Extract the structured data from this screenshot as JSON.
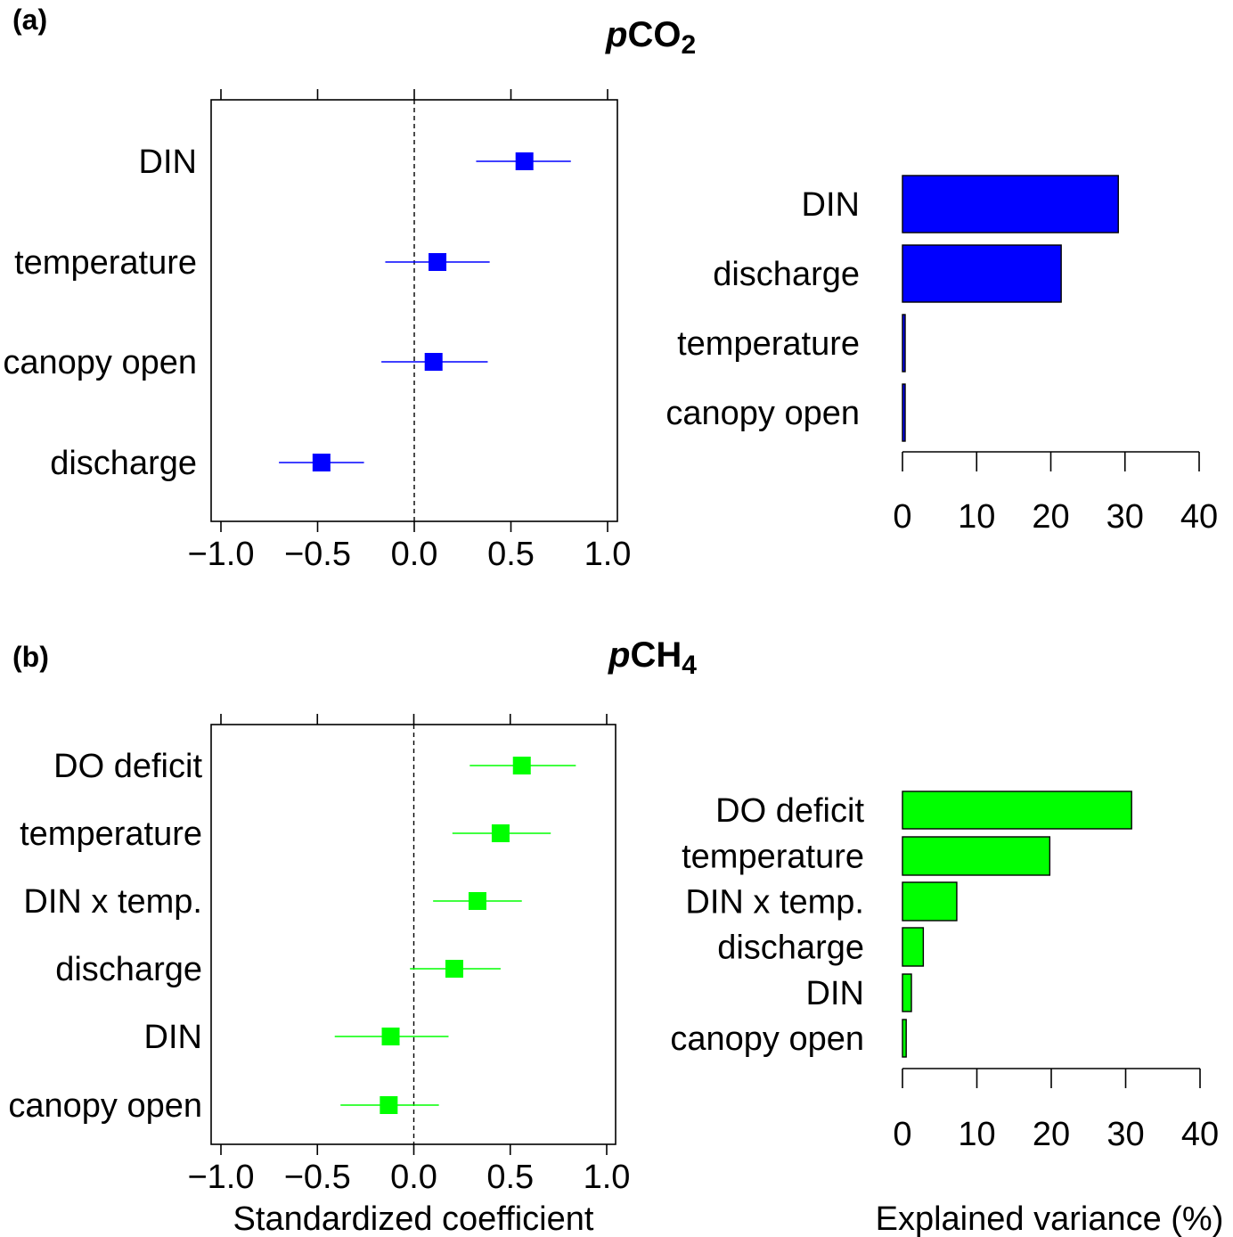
{
  "panels": [
    {
      "letter": "(a)",
      "title_prefix": "p",
      "title_main": "CO",
      "title_sub": "2"
    },
    {
      "letter": "(b)",
      "title_prefix": "p",
      "title_main": "CH",
      "title_sub": "4"
    }
  ],
  "colors": {
    "pco2": "#0000ff",
    "pco2_dark": "#00008b",
    "pch4": "#00ff00"
  },
  "chart_data": [
    {
      "type": "scatter",
      "panel": "(a)",
      "subtype": "coefficient-plot",
      "categories": [
        "DIN",
        "temperature",
        "canopy open",
        "discharge"
      ],
      "estimates": [
        0.57,
        0.12,
        0.1,
        -0.48
      ],
      "ci_low": [
        0.32,
        -0.15,
        -0.17,
        -0.7
      ],
      "ci_high": [
        0.81,
        0.39,
        0.38,
        -0.26
      ],
      "xlim": [
        -1.0,
        1.0
      ],
      "xticks": [
        "−1.0",
        "−0.5",
        "0.0",
        "0.5",
        "1.0"
      ],
      "xlabel": "",
      "reference_line": 0,
      "color": "#0000ff"
    },
    {
      "type": "bar",
      "panel": "(a)",
      "orientation": "horizontal",
      "categories": [
        "DIN",
        "discharge",
        "temperature",
        "canopy open"
      ],
      "values": [
        29.1,
        21.4,
        0.3,
        0.3
      ],
      "xlim": [
        0,
        40
      ],
      "xticks": [
        "0",
        "10",
        "20",
        "30",
        "40"
      ],
      "xlabel": "",
      "color": "#0000ff"
    },
    {
      "type": "scatter",
      "panel": "(b)",
      "subtype": "coefficient-plot",
      "categories": [
        "DO deficit",
        "temperature",
        "DIN x temp.",
        "discharge",
        "DIN",
        "canopy open"
      ],
      "estimates": [
        0.56,
        0.45,
        0.33,
        0.21,
        -0.12,
        -0.13
      ],
      "ci_low": [
        0.29,
        0.2,
        0.1,
        -0.02,
        -0.41,
        -0.38
      ],
      "ci_high": [
        0.84,
        0.71,
        0.56,
        0.45,
        0.18,
        0.13
      ],
      "xlim": [
        -1.0,
        1.0
      ],
      "xticks": [
        "−1.0",
        "−0.5",
        "0.0",
        "0.5",
        "1.0"
      ],
      "xlabel": "Standardized coefficient",
      "reference_line": 0,
      "color": "#00ff00"
    },
    {
      "type": "bar",
      "panel": "(b)",
      "orientation": "horizontal",
      "categories": [
        "DO deficit",
        "temperature",
        "DIN x temp.",
        "discharge",
        "DIN",
        "canopy open"
      ],
      "values": [
        30.8,
        19.8,
        7.3,
        2.8,
        1.2,
        0.5
      ],
      "xlim": [
        0,
        40
      ],
      "xticks": [
        "0",
        "10",
        "20",
        "30",
        "40"
      ],
      "xlabel": "Explained variance (%)",
      "color": "#00ff00"
    }
  ]
}
